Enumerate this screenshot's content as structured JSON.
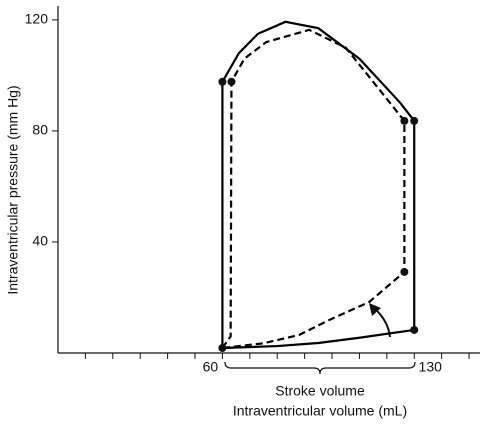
{
  "chart_data": {
    "type": "line",
    "xlabel": "Intraventricular volume (mL)",
    "ylabel": "Intraventricular pressure (mm Hg)",
    "annotation": "Stroke volume",
    "xlim": [
      0,
      154
    ],
    "ylim": [
      0,
      125
    ],
    "xticks": [
      60,
      130
    ],
    "xminorticks": [
      10,
      20,
      30,
      40,
      50,
      70,
      80,
      90,
      100,
      110,
      120,
      140,
      150
    ],
    "yticks": [
      40,
      80,
      120
    ],
    "series": [
      {
        "style": "solid",
        "color": "#000000",
        "x": [
          60,
          60,
          66,
          73,
          83,
          95,
          110,
          125,
          130,
          130,
          110,
          95,
          80,
          60
        ],
        "values": [
          1.8,
          97.7,
          108,
          115,
          119.3,
          117,
          106,
          90,
          83.6,
          8.3,
          5.5,
          3.6,
          2.5,
          1.8
        ]
      },
      {
        "style": "dashed",
        "color": "#000000",
        "x": [
          60,
          63,
          63.3,
          68,
          76,
          91.7,
          105,
          118,
          126.4,
          126.4,
          113.6,
          99,
          88,
          75,
          60
        ],
        "values": [
          1.8,
          6,
          97.7,
          106,
          112,
          116.4,
          110,
          94,
          83.6,
          29.2,
          18.4,
          11.9,
          6.5,
          3.5,
          1.8
        ]
      }
    ],
    "points": {
      "x": [
        60,
        130,
        130,
        60,
        63.3,
        126.4,
        126.4
      ],
      "values": [
        97.7,
        83.6,
        8.3,
        1.8,
        97.7,
        83.6,
        29.2
      ]
    }
  }
}
